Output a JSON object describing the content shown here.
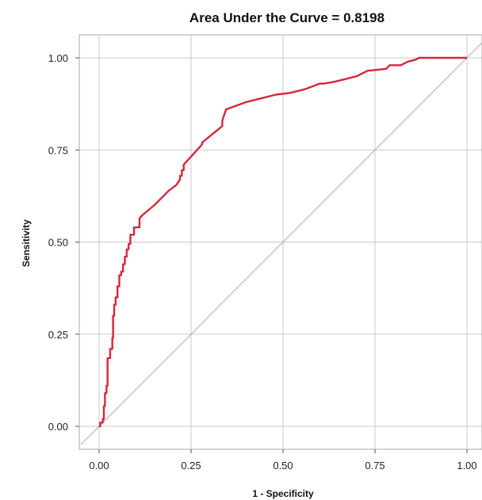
{
  "chart_data": {
    "type": "line",
    "title": "Area Under the Curve = 0.8198",
    "xlabel": "1 - Specificity",
    "ylabel": "Sensitivity",
    "xlim": [
      -0.05,
      1.05
    ],
    "ylim": [
      -0.05,
      1.05
    ],
    "x_ticks": [
      0,
      0.25,
      0.5,
      0.75,
      1
    ],
    "x_tick_labels": [
      "0.00",
      "0.25",
      "0.50",
      "0.75",
      "1.00"
    ],
    "y_ticks": [
      0,
      0.25,
      0.5,
      0.75,
      1
    ],
    "y_tick_labels": [
      "0.00",
      "0.25",
      "0.50",
      "0.75",
      "1.00"
    ],
    "grid": true,
    "legend": "none",
    "colors": {
      "curve": "#d7263d",
      "reference": "#b5b5b5",
      "grid": "#c8c8c8",
      "frame": "#a8a8a8"
    },
    "series": [
      {
        "kind": "roc-curve",
        "x": [
          0.0,
          0.003,
          0.003,
          0.01,
          0.01,
          0.013,
          0.013,
          0.016,
          0.016,
          0.02,
          0.02,
          0.023,
          0.023,
          0.03,
          0.03,
          0.036,
          0.036,
          0.038,
          0.038,
          0.041,
          0.041,
          0.045,
          0.045,
          0.05,
          0.05,
          0.055,
          0.055,
          0.06,
          0.06,
          0.065,
          0.065,
          0.07,
          0.07,
          0.075,
          0.075,
          0.08,
          0.08,
          0.085,
          0.085,
          0.095,
          0.095,
          0.11,
          0.11,
          0.12,
          0.15,
          0.17,
          0.19,
          0.21,
          0.22,
          0.22,
          0.225,
          0.225,
          0.23,
          0.23,
          0.28,
          0.28,
          0.335,
          0.335,
          0.345,
          0.4,
          0.44,
          0.48,
          0.52,
          0.56,
          0.6,
          0.61,
          0.64,
          0.68,
          0.7,
          0.73,
          0.78,
          0.79,
          0.82,
          0.84,
          0.86,
          0.87,
          1.0
        ],
        "y": [
          0.0,
          0.0,
          0.01,
          0.01,
          0.02,
          0.02,
          0.055,
          0.055,
          0.09,
          0.09,
          0.11,
          0.11,
          0.185,
          0.185,
          0.21,
          0.21,
          0.24,
          0.24,
          0.3,
          0.3,
          0.33,
          0.33,
          0.35,
          0.35,
          0.38,
          0.38,
          0.41,
          0.41,
          0.42,
          0.42,
          0.44,
          0.44,
          0.46,
          0.46,
          0.48,
          0.48,
          0.495,
          0.495,
          0.52,
          0.52,
          0.54,
          0.54,
          0.565,
          0.575,
          0.6,
          0.62,
          0.64,
          0.655,
          0.67,
          0.68,
          0.68,
          0.695,
          0.695,
          0.71,
          0.765,
          0.77,
          0.815,
          0.83,
          0.86,
          0.88,
          0.89,
          0.9,
          0.905,
          0.915,
          0.93,
          0.93,
          0.935,
          0.945,
          0.95,
          0.965,
          0.97,
          0.98,
          0.98,
          0.99,
          0.995,
          1.0,
          1.0
        ]
      },
      {
        "kind": "reference-diagonal",
        "x": [
          -0.05,
          1.05
        ],
        "y": [
          -0.05,
          1.05
        ]
      }
    ]
  }
}
